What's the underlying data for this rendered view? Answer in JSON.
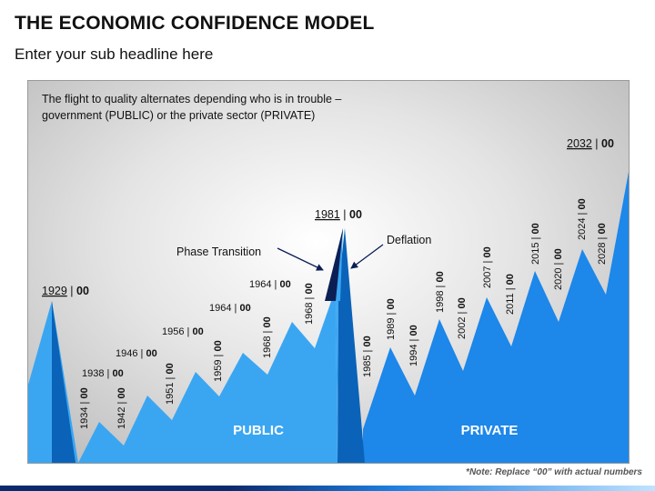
{
  "header": {
    "title": "THE ECONOMIC CONFIDENCE MODEL",
    "subtitle": "Enter your sub headline here"
  },
  "panel": {
    "description_line1": "The flight to quality alternates depending who is in trouble –",
    "description_line2": "government (PUBLIC) or the private sector (PRIVATE)"
  },
  "regions": {
    "public": "PUBLIC",
    "private": "PRIVATE"
  },
  "annotations": {
    "phase_transition": "Phase Transition",
    "deflation": "Deflation"
  },
  "peaks": {
    "p1929": {
      "year": "1929",
      "suffix": "00"
    },
    "p1981": {
      "year": "1981",
      "suffix": "00"
    },
    "p2032": {
      "year": "2032",
      "suffix": "00"
    }
  },
  "horizontal_labels": [
    {
      "year": "1938",
      "suffix": "00"
    },
    {
      "year": "1946",
      "suffix": "00"
    },
    {
      "year": "1956",
      "suffix": "00"
    },
    {
      "year": "1964",
      "suffix": "00"
    },
    {
      "year": "1964",
      "suffix": "00"
    }
  ],
  "vertical_labels": [
    {
      "year": "1934",
      "suffix": "00"
    },
    {
      "year": "1942",
      "suffix": "00"
    },
    {
      "year": "1951",
      "suffix": "00"
    },
    {
      "year": "1959",
      "suffix": "00"
    },
    {
      "year": "1968",
      "suffix": "00"
    },
    {
      "year": "1968",
      "suffix": "00"
    },
    {
      "year": "1985",
      "suffix": "00"
    },
    {
      "year": "1989",
      "suffix": "00"
    },
    {
      "year": "1994",
      "suffix": "00"
    },
    {
      "year": "1998",
      "suffix": "00"
    },
    {
      "year": "2002",
      "suffix": "00"
    },
    {
      "year": "2007",
      "suffix": "00"
    },
    {
      "year": "2011",
      "suffix": "00"
    },
    {
      "year": "2015",
      "suffix": "00"
    },
    {
      "year": "2020",
      "suffix": "00"
    },
    {
      "year": "2024",
      "suffix": "00"
    },
    {
      "year": "2028",
      "suffix": "00"
    }
  ],
  "note": "*Note: Replace “00” with actual numbers",
  "colors": {
    "public_fill": "#3aa6f2",
    "private_fill": "#1d87ea",
    "spike_dark": "#0a63b8",
    "spike_tip": "#0b1f55"
  }
}
